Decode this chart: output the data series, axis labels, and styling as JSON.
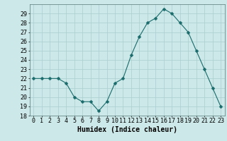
{
  "x": [
    0,
    1,
    2,
    3,
    4,
    5,
    6,
    7,
    8,
    9,
    10,
    11,
    12,
    13,
    14,
    15,
    16,
    17,
    18,
    19,
    20,
    21,
    22,
    23
  ],
  "y": [
    22.0,
    22.0,
    22.0,
    22.0,
    21.5,
    20.0,
    19.5,
    19.5,
    18.5,
    19.5,
    21.5,
    22.0,
    24.5,
    26.5,
    28.0,
    28.5,
    29.5,
    29.0,
    28.0,
    27.0,
    25.0,
    23.0,
    21.0,
    19.0
  ],
  "xlabel": "Humidex (Indice chaleur)",
  "ylabel": "",
  "xlim": [
    -0.5,
    23.5
  ],
  "ylim": [
    18,
    30
  ],
  "yticks": [
    18,
    19,
    20,
    21,
    22,
    23,
    24,
    25,
    26,
    27,
    28,
    29
  ],
  "xtick_labels": [
    "0",
    "1",
    "2",
    "3",
    "4",
    "5",
    "6",
    "7",
    "8",
    "9",
    "10",
    "11",
    "12",
    "13",
    "14",
    "15",
    "16",
    "17",
    "18",
    "19",
    "20",
    "21",
    "22",
    "23"
  ],
  "line_color": "#1a6b6b",
  "marker": "D",
  "marker_size": 2.5,
  "bg_color": "#cce8e8",
  "grid_color": "#aacece",
  "axis_fontsize": 7,
  "tick_fontsize": 6
}
